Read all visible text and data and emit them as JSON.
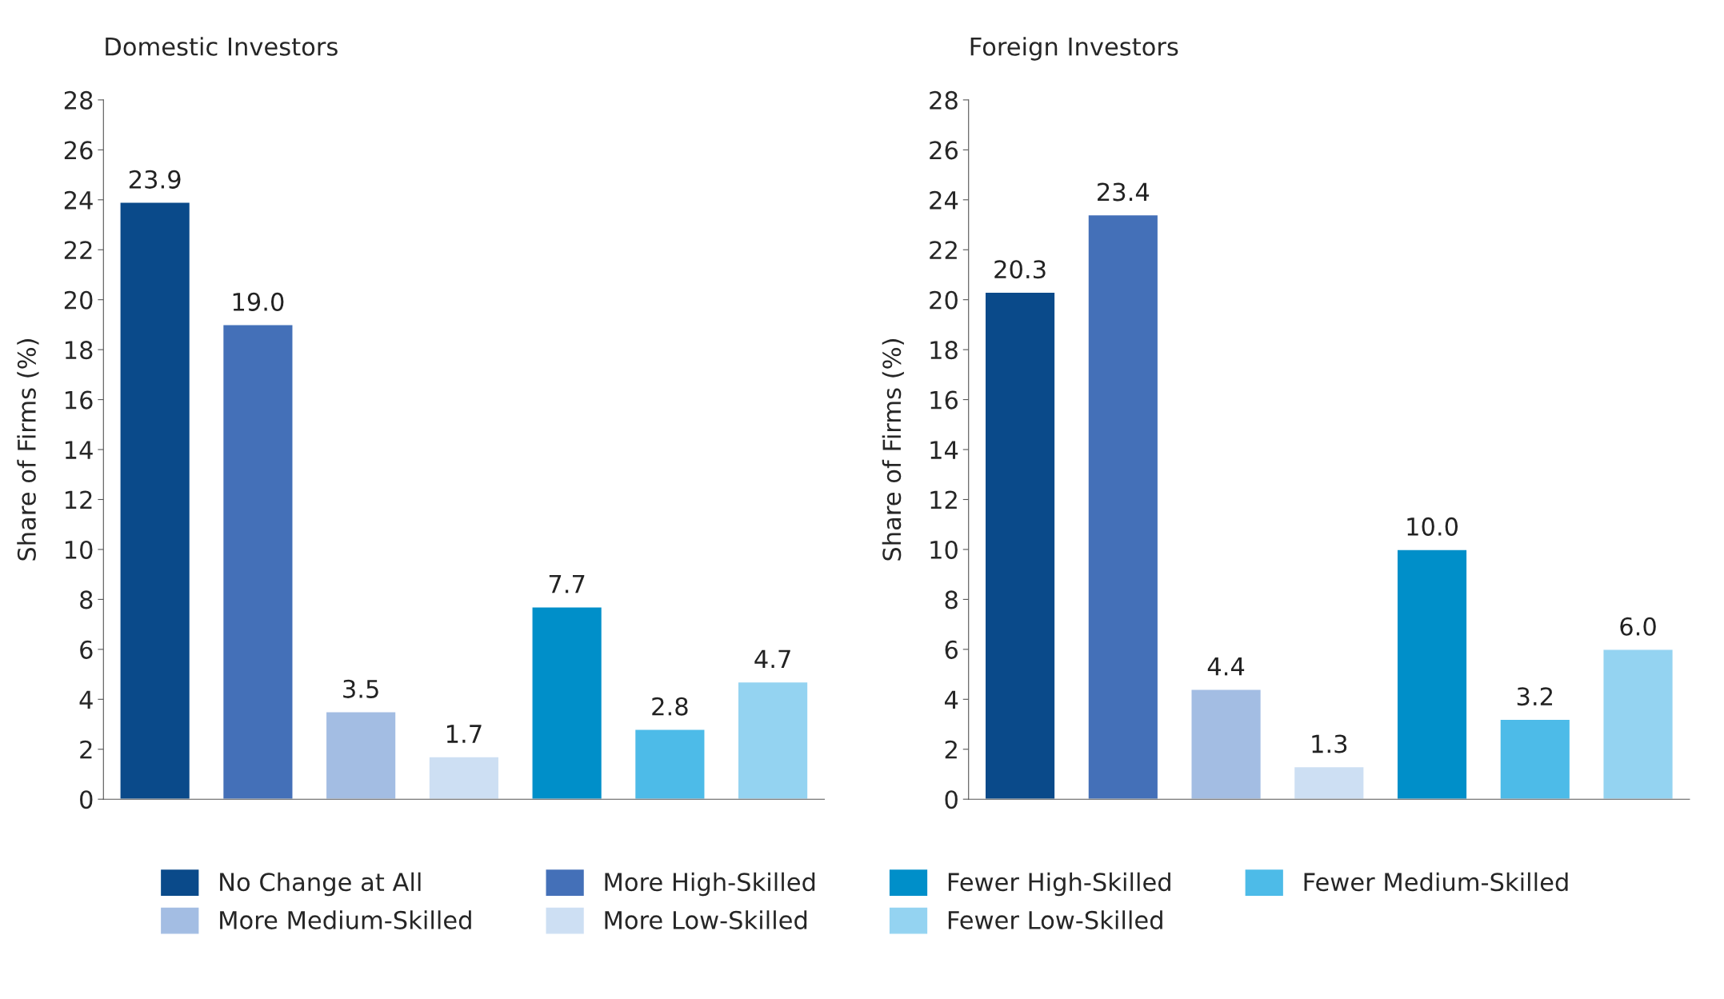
{
  "chart_data": [
    {
      "type": "bar",
      "title": "Domestic Investors",
      "ylabel": "Share of Firms (%)",
      "categories": [
        null,
        null,
        null,
        null,
        null,
        null,
        null
      ],
      "ylim": [
        0,
        28
      ],
      "yticks": [
        0,
        2,
        4,
        6,
        8,
        10,
        12,
        14,
        16,
        18,
        20,
        22,
        24,
        26,
        28
      ],
      "grid": false,
      "legend": "bottom",
      "series": [
        {
          "name": "No Change at All",
          "color": "#0a4a8a",
          "values": [
            23.9,
            null,
            null,
            null,
            null,
            null,
            null
          ],
          "value_labels": [
            "23.9",
            null,
            null,
            null,
            null,
            null,
            null
          ]
        },
        {
          "name": "More High-Skilled",
          "color": "#4470b8",
          "values": [
            null,
            19.0,
            null,
            null,
            null,
            null,
            null
          ],
          "value_labels": [
            null,
            "19.0",
            null,
            null,
            null,
            null,
            null
          ]
        },
        {
          "name": "More Medium-Skilled",
          "color": "#a3bde3",
          "values": [
            null,
            null,
            3.5,
            null,
            null,
            null,
            null
          ],
          "value_labels": [
            null,
            null,
            "3.5",
            null,
            null,
            null,
            null
          ]
        },
        {
          "name": "More Low-Skilled",
          "color": "#cddff3",
          "values": [
            null,
            null,
            null,
            1.7,
            null,
            null,
            null
          ],
          "value_labels": [
            null,
            null,
            null,
            "1.7",
            null,
            null,
            null
          ]
        },
        {
          "name": "Fewer High-Skilled",
          "color": "#008fc9",
          "values": [
            null,
            null,
            null,
            null,
            7.7,
            null,
            null
          ],
          "value_labels": [
            null,
            null,
            null,
            null,
            "7.7",
            null,
            null
          ]
        },
        {
          "name": "Fewer Medium-Skilled",
          "color": "#4dbbe8",
          "values": [
            null,
            null,
            null,
            null,
            null,
            2.8,
            null
          ],
          "value_labels": [
            null,
            null,
            null,
            null,
            null,
            "2.8",
            null
          ]
        },
        {
          "name": "Fewer Low-Skilled",
          "color": "#94d3f1",
          "values": [
            null,
            null,
            null,
            null,
            null,
            null,
            4.7
          ],
          "value_labels": [
            null,
            null,
            null,
            null,
            null,
            null,
            "4.7"
          ]
        }
      ]
    },
    {
      "type": "bar",
      "title": "Foreign Investors",
      "ylabel": "Share of Firms (%)",
      "categories": [
        null,
        null,
        null,
        null,
        null,
        null,
        null
      ],
      "ylim": [
        0,
        28
      ],
      "yticks": [
        0,
        2,
        4,
        6,
        8,
        10,
        12,
        14,
        16,
        18,
        20,
        22,
        24,
        26,
        28
      ],
      "grid": false,
      "series": [
        {
          "color": "#0a4a8a",
          "values": [
            20.3,
            null,
            null,
            null,
            null,
            null,
            null
          ],
          "value_labels": [
            "20.3",
            null,
            null,
            null,
            null,
            null,
            null
          ]
        },
        {
          "color": "#4470b8",
          "values": [
            null,
            23.4,
            null,
            null,
            null,
            null,
            null
          ],
          "value_labels": [
            null,
            "23.4",
            null,
            null,
            null,
            null,
            null
          ]
        },
        {
          "color": "#a3bde3",
          "values": [
            null,
            null,
            4.4,
            null,
            null,
            null,
            null
          ],
          "value_labels": [
            null,
            null,
            "4.4",
            null,
            null,
            null,
            null
          ]
        },
        {
          "color": "#cddff3",
          "values": [
            null,
            null,
            null,
            1.3,
            null,
            null,
            null
          ],
          "value_labels": [
            null,
            null,
            null,
            "1.3",
            null,
            null,
            null
          ]
        },
        {
          "color": "#008fc9",
          "values": [
            null,
            null,
            null,
            null,
            10.0,
            null,
            null
          ],
          "value_labels": [
            null,
            null,
            null,
            null,
            "10.0",
            null,
            null
          ]
        },
        {
          "color": "#4dbbe8",
          "values": [
            null,
            null,
            null,
            null,
            null,
            3.2,
            null
          ],
          "value_labels": [
            null,
            null,
            null,
            null,
            null,
            "3.2",
            null
          ]
        },
        {
          "color": "#94d3f1",
          "values": [
            null,
            null,
            null,
            null,
            null,
            null,
            6.0
          ],
          "value_labels": [
            null,
            null,
            null,
            null,
            null,
            null,
            "6.0"
          ]
        }
      ]
    }
  ]
}
